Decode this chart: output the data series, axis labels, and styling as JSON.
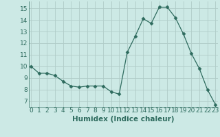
{
  "x": [
    0,
    1,
    2,
    3,
    4,
    5,
    6,
    7,
    8,
    9,
    10,
    11,
    12,
    13,
    14,
    15,
    16,
    17,
    18,
    19,
    20,
    21,
    22,
    23
  ],
  "y": [
    10.0,
    9.4,
    9.4,
    9.2,
    8.7,
    8.3,
    8.2,
    8.3,
    8.3,
    8.3,
    7.8,
    7.6,
    11.2,
    12.6,
    14.1,
    13.7,
    15.1,
    15.1,
    14.2,
    12.8,
    11.1,
    9.8,
    8.0,
    6.7
  ],
  "line_color": "#2e6b5e",
  "marker": "D",
  "marker_size": 2.5,
  "bg_color": "#cce9e5",
  "grid_color": "#b0ccc8",
  "xlabel": "Humidex (Indice chaleur)",
  "ylim": [
    6.5,
    15.6
  ],
  "xlim": [
    -0.3,
    23.3
  ],
  "yticks": [
    7,
    8,
    9,
    10,
    11,
    12,
    13,
    14,
    15
  ],
  "xticks": [
    0,
    1,
    2,
    3,
    4,
    5,
    6,
    7,
    8,
    9,
    10,
    11,
    12,
    13,
    14,
    15,
    16,
    17,
    18,
    19,
    20,
    21,
    22,
    23
  ],
  "font_color": "#2e6b5e",
  "tick_fontsize": 6.5,
  "xlabel_fontsize": 7.5
}
